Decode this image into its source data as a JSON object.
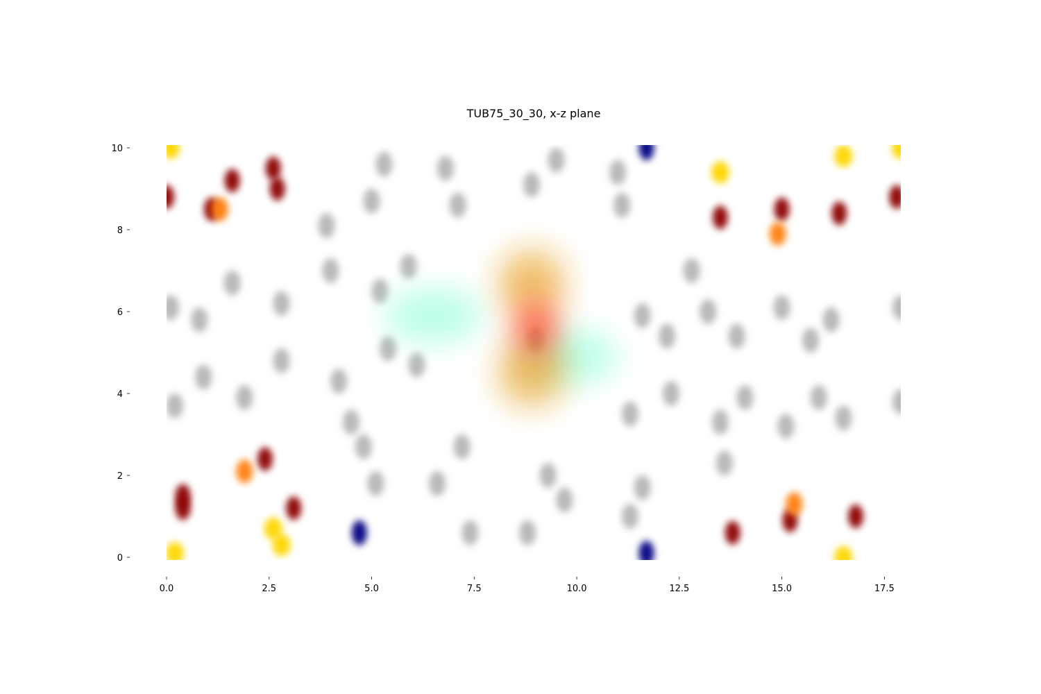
{
  "chart_data": {
    "type": "scatter",
    "title": "TUB75_30_30, x-z plane",
    "xlabel": "",
    "ylabel": "",
    "xlim": [
      0,
      17.9
    ],
    "ylim": [
      0,
      10
    ],
    "x_ticks": [
      "0.0",
      "2.5",
      "5.0",
      "7.5",
      "10.0",
      "12.5",
      "15.0",
      "17.5"
    ],
    "y_ticks": [
      "0",
      "2",
      "4",
      "6",
      "8",
      "10"
    ],
    "grid": false,
    "legend": "none",
    "colors": {
      "gray": "#808080",
      "dark_red": "#8b0000",
      "orange": "#ff7f0e",
      "gold": "#ffd700",
      "navy": "#000080",
      "aquamarine": "#7fffd4",
      "red": "#ff3b1f",
      "amber": "#e8a020"
    },
    "series": [
      {
        "color_key": "gray",
        "x": [
          0.1,
          0.8,
          0.9,
          0.2,
          1.6,
          1.9,
          2.8,
          2.8,
          3.9,
          4.0,
          4.2,
          4.5,
          4.8,
          5.0,
          5.2,
          5.4,
          5.3,
          5.1,
          5.9,
          6.1,
          6.6,
          6.8,
          7.1,
          7.2,
          7.4,
          8.8,
          8.9,
          9.0,
          9.3,
          9.5,
          9.7,
          11.0,
          11.1,
          11.3,
          11.6,
          11.6,
          11.3,
          12.2,
          12.3,
          12.8,
          13.2,
          13.5,
          13.6,
          13.9,
          14.1,
          15.0,
          15.1,
          15.7,
          15.9,
          16.2,
          16.5,
          17.9,
          17.9
        ],
        "y": [
          6.1,
          5.8,
          4.4,
          3.7,
          6.7,
          3.9,
          6.2,
          4.8,
          8.1,
          7.0,
          4.3,
          3.3,
          2.7,
          8.7,
          6.5,
          5.1,
          9.6,
          1.8,
          7.1,
          4.7,
          1.8,
          9.5,
          8.6,
          2.7,
          0.6,
          0.6,
          9.1,
          5.3,
          2.0,
          9.7,
          1.4,
          9.4,
          8.6,
          1.0,
          5.9,
          1.7,
          3.5,
          5.4,
          4.0,
          7.0,
          6.0,
          3.3,
          2.3,
          5.4,
          3.9,
          6.1,
          3.2,
          5.3,
          3.9,
          5.8,
          3.4,
          6.1,
          3.8
        ]
      },
      {
        "color_key": "dark_red",
        "x": [
          0.0,
          0.4,
          0.4,
          1.1,
          1.6,
          2.6,
          2.7,
          2.4,
          3.1,
          13.5,
          13.8,
          15.0,
          15.2,
          16.4,
          16.8,
          17.8
        ],
        "y": [
          8.8,
          1.5,
          1.2,
          8.5,
          9.2,
          9.5,
          9.0,
          2.4,
          1.2,
          8.3,
          0.6,
          8.5,
          0.9,
          8.4,
          1.0,
          8.8
        ]
      },
      {
        "color_key": "orange",
        "x": [
          1.3,
          1.9,
          14.9,
          15.3
        ],
        "y": [
          8.5,
          2.1,
          7.9,
          1.3
        ]
      },
      {
        "color_key": "gold",
        "x": [
          0.1,
          0.2,
          2.6,
          2.8,
          13.5,
          16.5,
          17.9,
          16.5
        ],
        "y": [
          10.0,
          0.1,
          0.7,
          0.3,
          9.4,
          9.8,
          10.0,
          0.0
        ]
      },
      {
        "color_key": "navy",
        "x": [
          4.7,
          11.7,
          11.7
        ],
        "y": [
          0.6,
          10.0,
          0.1
        ]
      },
      {
        "color_key": "aquamarine",
        "x": [
          6.5,
          9.8
        ],
        "y": [
          5.9,
          4.9
        ]
      },
      {
        "color_key": "amber",
        "x": [
          8.9,
          8.9
        ],
        "y": [
          6.7,
          4.5
        ]
      },
      {
        "color_key": "red",
        "x": [
          9.0
        ],
        "y": [
          5.6
        ]
      }
    ]
  }
}
